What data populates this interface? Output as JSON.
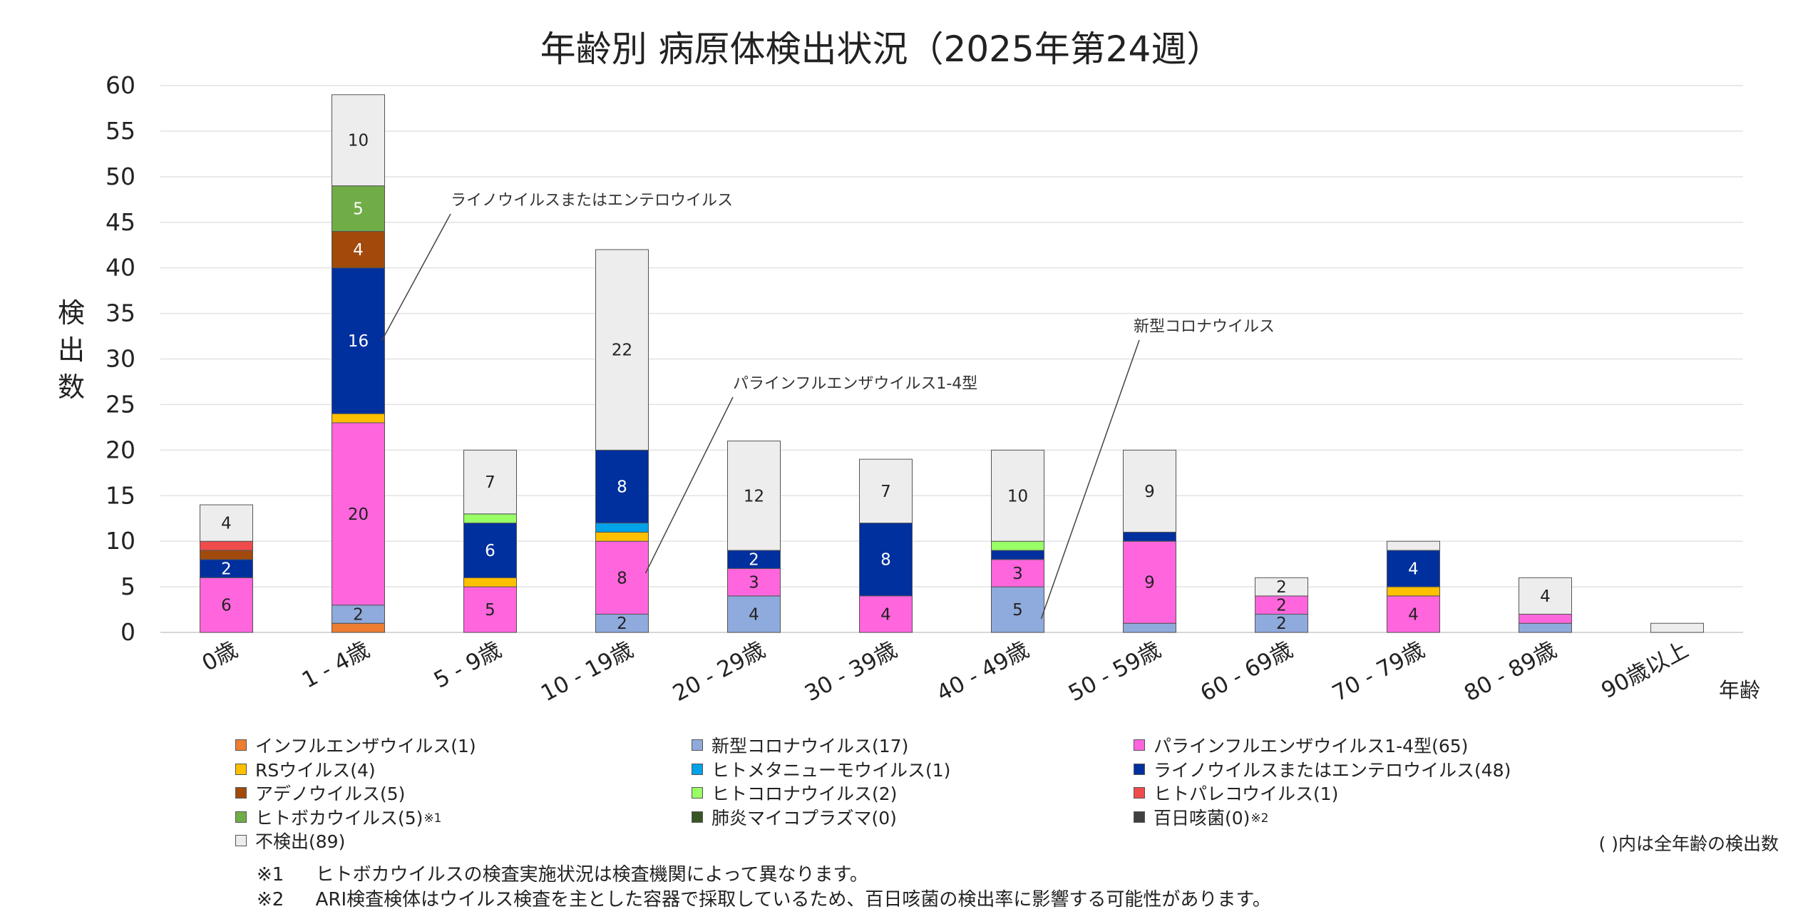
{
  "chart_data": {
    "type": "bar",
    "stacked": true,
    "title": "年齢別 病原体検出状況（2025年第24週）",
    "ylabel": "検出数",
    "xlabel": "年齢",
    "ylim": [
      0,
      60
    ],
    "yticks": [
      0,
      5,
      10,
      15,
      20,
      25,
      30,
      35,
      40,
      45,
      50,
      55,
      60
    ],
    "grid": true,
    "categories": [
      "0歳",
      "1 - 4歳",
      "5 - 9歳",
      "10 - 19歳",
      "20 - 29歳",
      "30 - 39歳",
      "40 - 49歳",
      "50 - 59歳",
      "60 - 69歳",
      "70 - 79歳",
      "80 - 89歳",
      "90歳以上"
    ],
    "series": [
      {
        "name": "インフルエンザウイルス",
        "total": "1",
        "color": "#ed7d31",
        "values": [
          0,
          1,
          0,
          0,
          0,
          0,
          0,
          0,
          0,
          0,
          0,
          0
        ]
      },
      {
        "name": "新型コロナウイルス",
        "total": "17",
        "color": "#8faadc",
        "values": [
          0,
          2,
          0,
          2,
          4,
          0,
          5,
          1,
          2,
          0,
          1,
          0
        ]
      },
      {
        "name": "パラインフルエンザウイルス1-4型",
        "total": "65",
        "color": "#ff66dd",
        "values": [
          6,
          20,
          5,
          8,
          3,
          4,
          3,
          9,
          2,
          4,
          1,
          0
        ]
      },
      {
        "name": "RSウイルス",
        "total": "4",
        "color": "#ffc000",
        "values": [
          0,
          1,
          1,
          1,
          0,
          0,
          0,
          0,
          0,
          1,
          0,
          0
        ]
      },
      {
        "name": "ヒトメタニューモウイルス",
        "total": "1",
        "color": "#00a2e8",
        "values": [
          0,
          0,
          0,
          1,
          0,
          0,
          0,
          0,
          0,
          0,
          0,
          0
        ]
      },
      {
        "name": "ライノウイルスまたはエンテロウイルス",
        "total": "48",
        "color": "#002f9e",
        "values": [
          2,
          16,
          6,
          8,
          2,
          8,
          1,
          1,
          0,
          4,
          0,
          0
        ]
      },
      {
        "name": "アデノウイルス",
        "total": "5",
        "color": "#a14a0c",
        "values": [
          1,
          4,
          0,
          0,
          0,
          0,
          0,
          0,
          0,
          0,
          0,
          0
        ]
      },
      {
        "name": "ヒトコロナウイルス",
        "total": "2",
        "color": "#99ff66",
        "values": [
          0,
          0,
          1,
          0,
          0,
          0,
          1,
          0,
          0,
          0,
          0,
          0
        ]
      },
      {
        "name": "ヒトパレコウイルス",
        "total": "1",
        "color": "#f04b4b",
        "values": [
          1,
          0,
          0,
          0,
          0,
          0,
          0,
          0,
          0,
          0,
          0,
          0
        ]
      },
      {
        "name": "ヒトボカウイルス",
        "total": "5",
        "note": "※1",
        "color": "#70ad47",
        "values": [
          0,
          5,
          0,
          0,
          0,
          0,
          0,
          0,
          0,
          0,
          0,
          0
        ]
      },
      {
        "name": "肺炎マイコプラズマ",
        "total": "0",
        "color": "#375623",
        "values": [
          0,
          0,
          0,
          0,
          0,
          0,
          0,
          0,
          0,
          0,
          0,
          0
        ]
      },
      {
        "name": "百日咳菌",
        "total": "0",
        "note": "※2",
        "color": "#404040",
        "values": [
          0,
          0,
          0,
          0,
          0,
          0,
          0,
          0,
          0,
          0,
          0,
          0
        ]
      },
      {
        "name": "不検出",
        "total": "89",
        "color": "#ededed",
        "values": [
          4,
          10,
          7,
          22,
          12,
          7,
          10,
          9,
          2,
          1,
          4,
          1
        ]
      }
    ],
    "data_labels": [
      {
        "category": 0,
        "series": 2,
        "text": "6"
      },
      {
        "category": 0,
        "series": 5,
        "text": "2"
      },
      {
        "category": 0,
        "series": 12,
        "text": "4"
      },
      {
        "category": 1,
        "series": 1,
        "text": "2"
      },
      {
        "category": 1,
        "series": 2,
        "text": "20"
      },
      {
        "category": 1,
        "series": 5,
        "text": "16"
      },
      {
        "category": 1,
        "series": 6,
        "text": "4"
      },
      {
        "category": 1,
        "series": 9,
        "text": "5"
      },
      {
        "category": 1,
        "series": 12,
        "text": "10"
      },
      {
        "category": 2,
        "series": 2,
        "text": "5"
      },
      {
        "category": 2,
        "series": 5,
        "text": "6"
      },
      {
        "category": 2,
        "series": 12,
        "text": "7"
      },
      {
        "category": 3,
        "series": 1,
        "text": "2"
      },
      {
        "category": 3,
        "series": 2,
        "text": "8"
      },
      {
        "category": 3,
        "series": 5,
        "text": "8"
      },
      {
        "category": 3,
        "series": 12,
        "text": "22"
      },
      {
        "category": 4,
        "series": 1,
        "text": "4"
      },
      {
        "category": 4,
        "series": 2,
        "text": "3"
      },
      {
        "category": 4,
        "series": 5,
        "text": "2"
      },
      {
        "category": 4,
        "series": 12,
        "text": "12"
      },
      {
        "category": 5,
        "series": 2,
        "text": "4"
      },
      {
        "category": 5,
        "series": 5,
        "text": "8"
      },
      {
        "category": 5,
        "series": 12,
        "text": "7"
      },
      {
        "category": 6,
        "series": 1,
        "text": "5"
      },
      {
        "category": 6,
        "series": 2,
        "text": "3"
      },
      {
        "category": 6,
        "series": 12,
        "text": "10"
      },
      {
        "category": 7,
        "series": 2,
        "text": "9"
      },
      {
        "category": 7,
        "series": 12,
        "text": "9"
      },
      {
        "category": 8,
        "series": 1,
        "text": "2"
      },
      {
        "category": 8,
        "series": 2,
        "text": "2"
      },
      {
        "category": 8,
        "series": 12,
        "text": "2"
      },
      {
        "category": 9,
        "series": 2,
        "text": "4"
      },
      {
        "category": 9,
        "series": 5,
        "text": "4"
      },
      {
        "category": 10,
        "series": 12,
        "text": "4"
      }
    ],
    "annotations": [
      {
        "text": "ライノウイルスまたはエンテロウイルス",
        "category": 1,
        "value": 32
      },
      {
        "text": "パラインフルエンザウイルス1-4型",
        "category": 3,
        "value": 6.5
      },
      {
        "text": "新型コロナウイルス",
        "category": 6,
        "value": 1.5
      }
    ]
  },
  "legend_note": "( )内は全年齢の検出数",
  "footnotes": [
    {
      "mark": "※1",
      "text": "ヒトボカウイルスの検査実施状況は検査機関によって異なります。"
    },
    {
      "mark": "※2",
      "text": "ARI検査検体はウイルス検査を主とした容器で採取しているため、百日咳菌の検出率に影響する可能性があります。"
    }
  ]
}
